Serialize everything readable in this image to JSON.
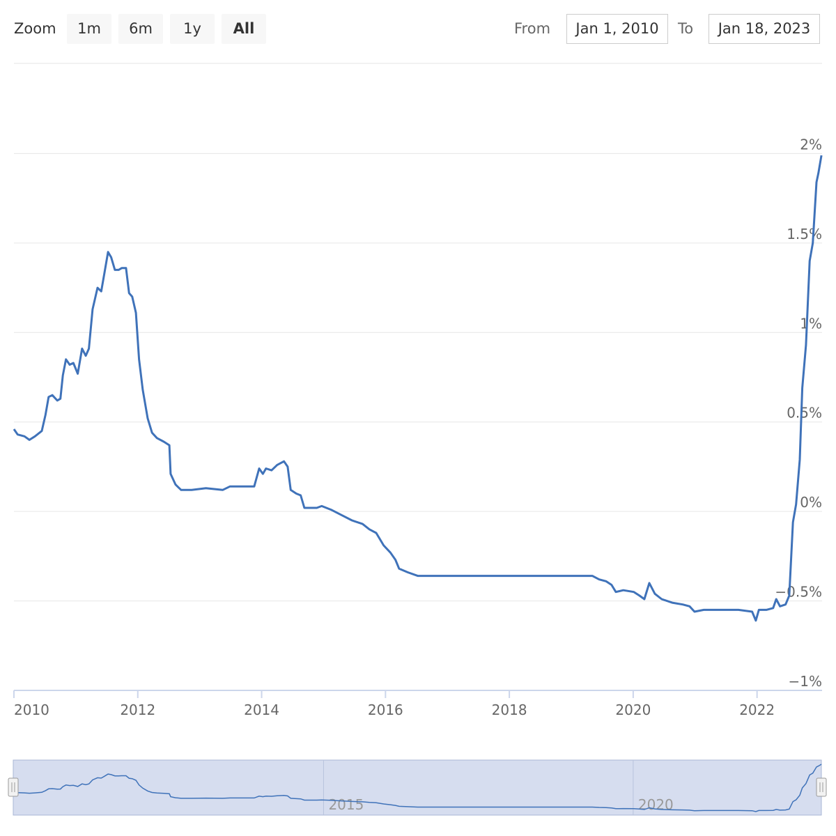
{
  "range_selector": {
    "zoom_label": "Zoom",
    "buttons": [
      "1m",
      "6m",
      "1y",
      "All"
    ],
    "from_label": "From",
    "from": "Jan 1, 2010",
    "to_label": "To",
    "to": "Jan 18, 2023"
  },
  "chart_data": {
    "type": "line",
    "x": [
      2010.0,
      2010.06,
      2010.17,
      2010.25,
      2010.34,
      2010.45,
      2010.51,
      2010.56,
      2010.62,
      2010.7,
      2010.75,
      2010.79,
      2010.84,
      2010.9,
      2010.96,
      2011.03,
      2011.1,
      2011.16,
      2011.21,
      2011.27,
      2011.35,
      2011.41,
      2011.46,
      2011.52,
      2011.57,
      2011.63,
      2011.69,
      2011.74,
      2011.81,
      2011.86,
      2011.91,
      2011.97,
      2012.02,
      2012.08,
      2012.16,
      2012.23,
      2012.31,
      2012.42,
      2012.51,
      2012.53,
      2012.61,
      2012.7,
      2012.87,
      2013.1,
      2013.37,
      2013.49,
      2013.66,
      2013.88,
      2013.96,
      2014.02,
      2014.07,
      2014.16,
      2014.25,
      2014.36,
      2014.42,
      2014.47,
      2014.56,
      2014.63,
      2014.69,
      2014.78,
      2014.89,
      2014.97,
      2015.12,
      2015.29,
      2015.46,
      2015.63,
      2015.74,
      2015.85,
      2015.97,
      2016.08,
      2016.16,
      2016.22,
      2016.36,
      2016.52,
      2017.09,
      2017.65,
      2018.21,
      2018.77,
      2019.34,
      2019.45,
      2019.56,
      2019.65,
      2019.72,
      2019.84,
      2020.01,
      2020.1,
      2020.18,
      2020.26,
      2020.35,
      2020.46,
      2020.63,
      2020.8,
      2020.91,
      2020.99,
      2021.14,
      2021.36,
      2021.7,
      2021.92,
      2021.98,
      2022.03,
      2022.15,
      2022.26,
      2022.31,
      2022.37,
      2022.46,
      2022.52,
      2022.58,
      2022.63,
      2022.69,
      2022.73,
      2022.79,
      2022.85,
      2022.9,
      2022.96,
      2022.99,
      2023.04
    ],
    "series": [
      {
        "color": "#3f72b9",
        "values": [
          0.46,
          0.43,
          0.42,
          0.4,
          0.42,
          0.45,
          0.54,
          0.64,
          0.65,
          0.62,
          0.63,
          0.76,
          0.85,
          0.82,
          0.83,
          0.77,
          0.91,
          0.87,
          0.91,
          1.13,
          1.25,
          1.23,
          1.33,
          1.45,
          1.42,
          1.35,
          1.35,
          1.36,
          1.36,
          1.22,
          1.2,
          1.11,
          0.85,
          0.68,
          0.52,
          0.44,
          0.41,
          0.39,
          0.37,
          0.21,
          0.15,
          0.12,
          0.12,
          0.13,
          0.12,
          0.14,
          0.14,
          0.14,
          0.24,
          0.21,
          0.24,
          0.23,
          0.26,
          0.28,
          0.25,
          0.12,
          0.1,
          0.09,
          0.02,
          0.02,
          0.02,
          0.03,
          0.01,
          -0.02,
          -0.05,
          -0.07,
          -0.1,
          -0.12,
          -0.19,
          -0.23,
          -0.27,
          -0.32,
          -0.34,
          -0.36,
          -0.36,
          -0.36,
          -0.36,
          -0.36,
          -0.36,
          -0.38,
          -0.39,
          -0.41,
          -0.45,
          -0.44,
          -0.45,
          -0.47,
          -0.49,
          -0.4,
          -0.46,
          -0.49,
          -0.51,
          -0.52,
          -0.53,
          -0.56,
          -0.55,
          -0.55,
          -0.55,
          -0.56,
          -0.61,
          -0.55,
          -0.55,
          -0.54,
          -0.49,
          -0.53,
          -0.52,
          -0.47,
          -0.06,
          0.04,
          0.29,
          0.69,
          0.93,
          1.4,
          1.5,
          1.84,
          1.89,
          1.99
        ]
      }
    ],
    "xlim": [
      2010,
      2023.05
    ],
    "xticks": [
      2010,
      2012,
      2014,
      2016,
      2018,
      2020,
      2022
    ],
    "ylim": [
      -1,
      2.5
    ],
    "yticks": [
      {
        "value": -1,
        "label": "−1%"
      },
      {
        "value": -0.5,
        "label": "−0.5%"
      },
      {
        "value": 0,
        "label": "0%"
      },
      {
        "value": 0.5,
        "label": "0.5%"
      },
      {
        "value": 1,
        "label": "1%"
      },
      {
        "value": 1.5,
        "label": "1.5%"
      },
      {
        "value": 2,
        "label": "2%"
      }
    ],
    "grid": true
  },
  "navigator": {
    "xticks": [
      2015,
      2020
    ]
  }
}
